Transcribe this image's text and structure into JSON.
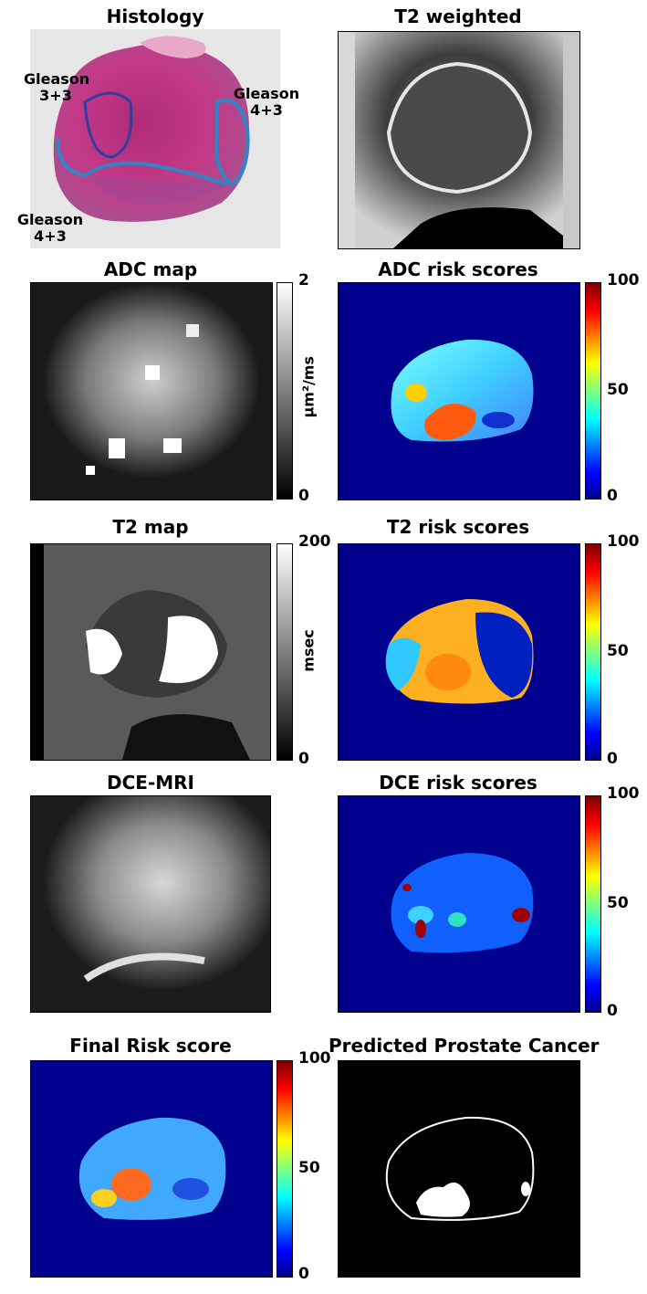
{
  "panels": {
    "histology": {
      "title": "Histology",
      "labels": [
        "Gleason\n3+3",
        "Gleason\n4+3",
        "Gleason\n4+3"
      ]
    },
    "t2_weighted": {
      "title": "T2 weighted"
    },
    "adc_map": {
      "title": "ADC map",
      "unit": "μm²/ms",
      "cbar_max": "2",
      "cbar_min": "0",
      "colormap": "gray"
    },
    "adc_risk": {
      "title": "ADC risk scores",
      "cbar_max": "100",
      "cbar_mid": "50",
      "cbar_min": "0",
      "colormap": "jet"
    },
    "t2_map": {
      "title": "T2 map",
      "unit": "msec",
      "cbar_max": "200",
      "cbar_min": "0",
      "colormap": "gray"
    },
    "t2_risk": {
      "title": "T2 risk scores",
      "cbar_max": "100",
      "cbar_mid": "50",
      "cbar_min": "0",
      "colormap": "jet"
    },
    "dce_mri": {
      "title": "DCE-MRI"
    },
    "dce_risk": {
      "title": "DCE risk scores",
      "cbar_max": "100",
      "cbar_mid": "50",
      "cbar_min": "0",
      "colormap": "jet"
    },
    "final_risk": {
      "title": "Final Risk score",
      "cbar_max": "100",
      "cbar_mid": "50",
      "cbar_min": "0",
      "colormap": "jet"
    },
    "predicted": {
      "title": "Predicted Prostate Cancer"
    }
  },
  "colors": {
    "background": "#ffffff",
    "risk_background": "#00008f",
    "histology_stain": "#c03a86",
    "tumor_outline": "#2f86c7"
  }
}
